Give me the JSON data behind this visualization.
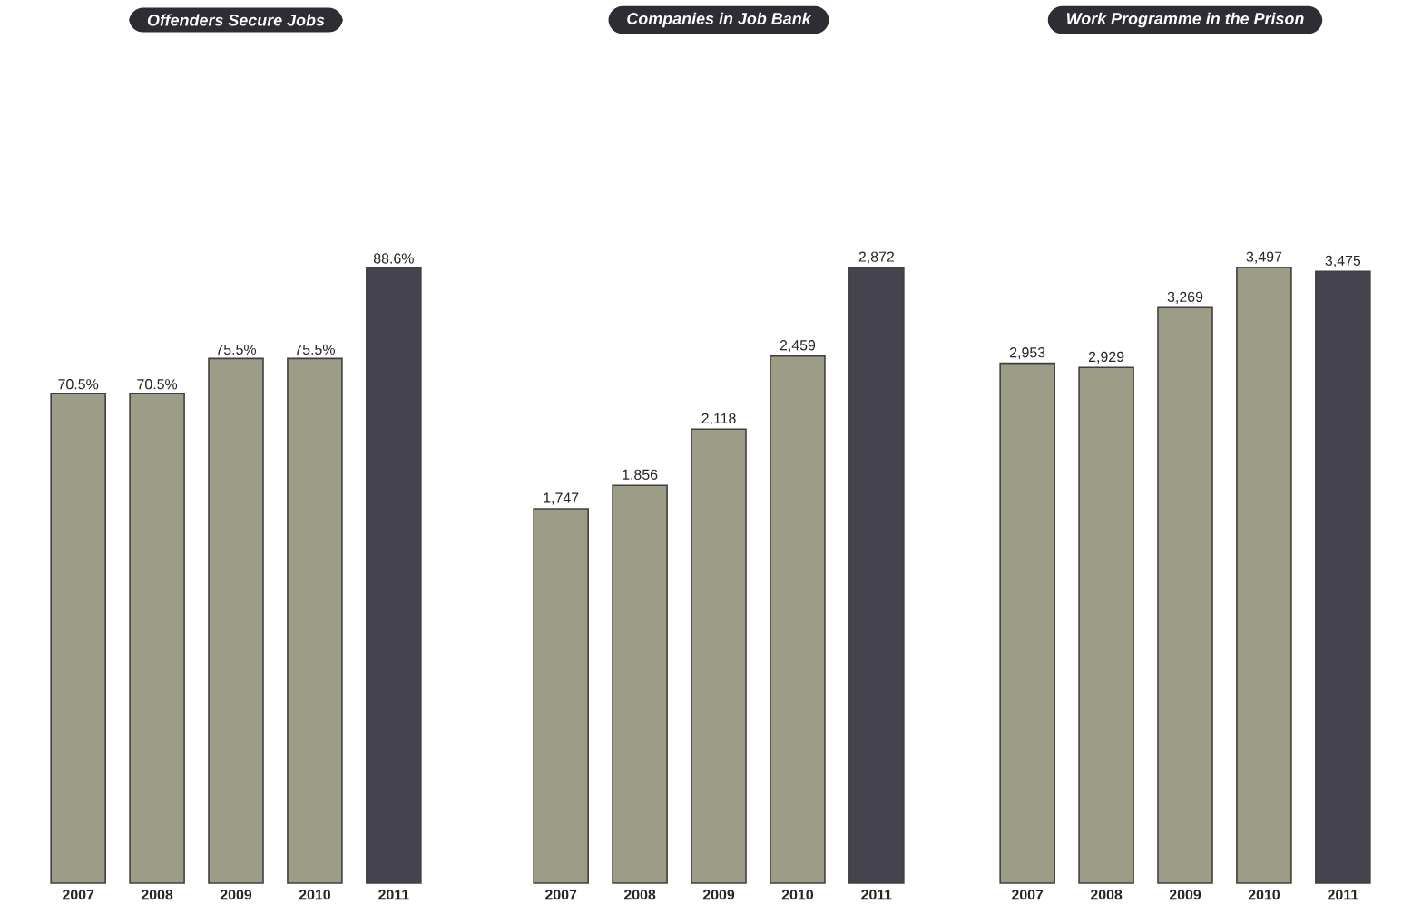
{
  "chart_data": [
    {
      "type": "bar",
      "title": "Offenders Secure Jobs",
      "categories": [
        "2007",
        "2008",
        "2009",
        "2010",
        "2011"
      ],
      "values": [
        70.5,
        70.5,
        75.5,
        75.5,
        88.6
      ],
      "value_labels": [
        "70.5%",
        "70.5%",
        "75.5%",
        "75.5%",
        "88.6%"
      ],
      "colors": [
        "#9c9c87",
        "#9c9c87",
        "#9c9c87",
        "#9c9c87",
        "#45444e"
      ],
      "tick_labels": "x"
    },
    {
      "type": "bar",
      "title": "Companies in Job Bank",
      "categories": [
        "2007",
        "2008",
        "2009",
        "2010",
        "2011"
      ],
      "values": [
        1747,
        1856,
        2118,
        2459,
        2872
      ],
      "value_labels": [
        "1,747",
        "1,856",
        "2,118",
        "2,459",
        "2,872"
      ],
      "colors": [
        "#9c9c87",
        "#9c9c87",
        "#9c9c87",
        "#9c9c87",
        "#45444e"
      ],
      "tick_labels": "x"
    },
    {
      "type": "bar",
      "title": "Work Programme in the Prison",
      "categories": [
        "2007",
        "2008",
        "2009",
        "2010",
        "2011"
      ],
      "values": [
        2953,
        2929,
        3269,
        3497,
        3475
      ],
      "value_labels": [
        "2,953",
        "2,929",
        "3,269",
        "3,497",
        "3,475"
      ],
      "colors": [
        "#9c9c87",
        "#9c9c87",
        "#9c9c87",
        "#9c9c87",
        "#45444e"
      ],
      "tick_labels": "x"
    }
  ]
}
